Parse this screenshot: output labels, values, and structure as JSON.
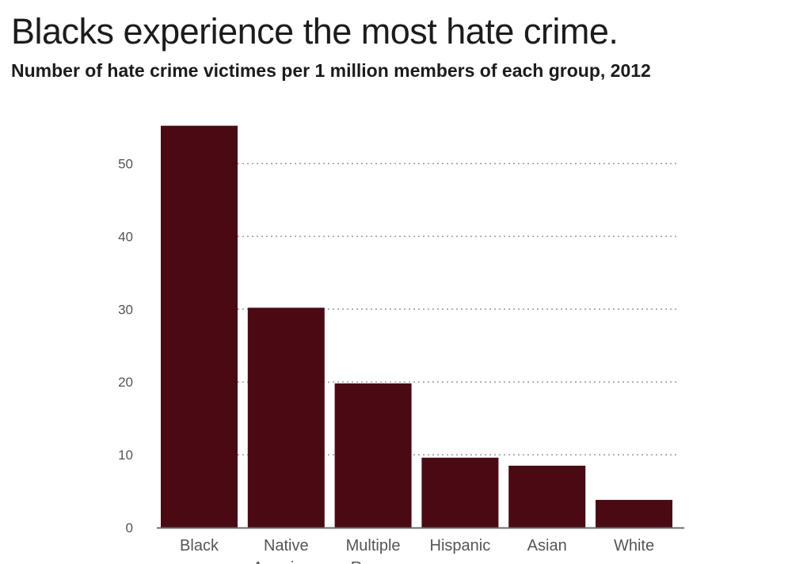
{
  "chart_data": {
    "type": "bar",
    "title": "Blacks experience the most hate crime.",
    "subtitle": "Number of hate crime victimes per 1 million members of each group, 2012",
    "categories": [
      "Black",
      "Native American",
      "Multiple Races",
      "Hispanic",
      "Asian",
      "White"
    ],
    "values": [
      55.2,
      30.2,
      19.8,
      9.6,
      8.5,
      3.8
    ],
    "y_ticks": [
      0,
      10,
      20,
      30,
      40,
      50
    ],
    "ylim": [
      0,
      55
    ],
    "grid": true,
    "grid_style": "dotted",
    "bar_color": "#4a0a14",
    "legend": "none"
  }
}
